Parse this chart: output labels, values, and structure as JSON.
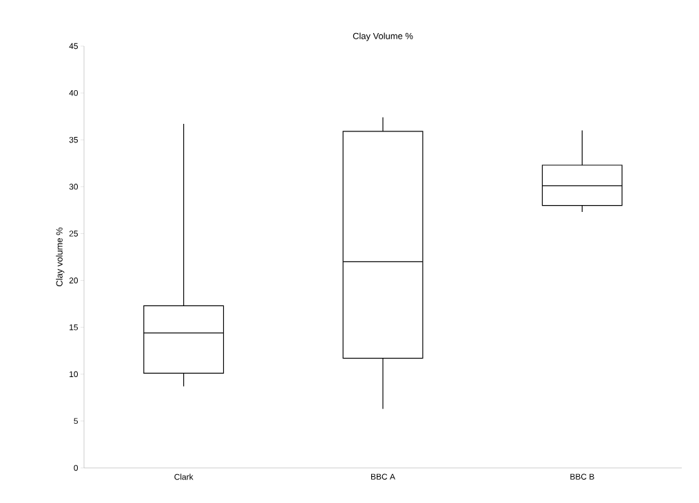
{
  "chart_data": {
    "type": "box",
    "title": "Clay Volume %",
    "ylabel": "Clay volume %",
    "categories": [
      "Clark",
      "BBC A",
      "BBC B"
    ],
    "boxes": [
      {
        "low": 8.7,
        "q1": 10.1,
        "median": 14.4,
        "q3": 17.3,
        "high": 36.7
      },
      {
        "low": 6.3,
        "q1": 11.7,
        "median": 22.0,
        "q3": 35.9,
        "high": 37.4
      },
      {
        "low": 27.3,
        "q1": 28.0,
        "median": 30.1,
        "q3": 32.3,
        "high": 36.0
      }
    ],
    "ylim": [
      0,
      45
    ],
    "yticks": [
      0,
      5,
      10,
      15,
      20,
      25,
      30,
      35,
      40,
      45
    ],
    "grid": false
  }
}
